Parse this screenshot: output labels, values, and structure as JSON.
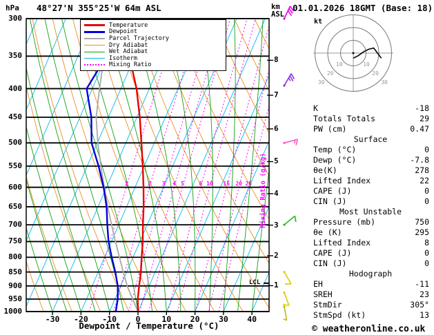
{
  "header": {
    "hpa": "hPa",
    "title": "48°27'N 355°25'W 64m ASL",
    "km": "km",
    "asl": "ASL",
    "datetime": "01.01.2026 18GMT (Base: 18)"
  },
  "axes": {
    "x_label": "Dewpoint / Temperature (°C)",
    "mixing_ratio_label": "Mixing Ratio (g/kg)",
    "kt_label": "kt",
    "lcl_label": "LCL"
  },
  "legend": {
    "items": [
      {
        "label": "Temperature",
        "color": "#e60000",
        "dash": "solid",
        "weight": 3
      },
      {
        "label": "Dewpoint",
        "color": "#0000dd",
        "dash": "solid",
        "weight": 3
      },
      {
        "label": "Parcel Trajectory",
        "color": "#a8a8a8",
        "dash": "solid",
        "weight": 2
      },
      {
        "label": "Dry Adiabat",
        "color": "#e89020",
        "dash": "solid",
        "weight": 1
      },
      {
        "label": "Wet Adiabat",
        "color": "#0fa00f",
        "dash": "solid",
        "weight": 1
      },
      {
        "label": "Isotherm",
        "color": "#00b8f0",
        "dash": "solid",
        "weight": 1
      },
      {
        "label": "Mixing Ratio",
        "color": "#ff00ff",
        "dash": "dotted",
        "weight": 2
      }
    ]
  },
  "indices": {
    "top": [
      [
        "K",
        "-18"
      ],
      [
        "Totals Totals",
        "29"
      ],
      [
        "PW (cm)",
        "0.47"
      ]
    ],
    "sections": [
      {
        "header": "Surface",
        "rows": [
          [
            "Temp (°C)",
            "0"
          ],
          [
            "Dewp (°C)",
            "-7.8"
          ],
          [
            "θe(K)",
            "278"
          ],
          [
            "Lifted Index",
            "22"
          ],
          [
            "CAPE (J)",
            "0"
          ],
          [
            "CIN (J)",
            "0"
          ]
        ]
      },
      {
        "header": "Most Unstable",
        "rows": [
          [
            "Pressure (mb)",
            "750"
          ],
          [
            "θe (K)",
            "295"
          ],
          [
            "Lifted Index",
            "8"
          ],
          [
            "CAPE (J)",
            "0"
          ],
          [
            "CIN (J)",
            "0"
          ]
        ]
      },
      {
        "header": "Hodograph",
        "rows": [
          [
            "EH",
            "-11"
          ],
          [
            "SREH",
            "23"
          ],
          [
            "StmDir",
            "305°"
          ],
          [
            "StmSpd (kt)",
            "13"
          ]
        ]
      }
    ]
  },
  "footer": {
    "copyright": "© weatheronline.co.uk"
  },
  "chart_data": {
    "type": "line",
    "variant": "skew-t-log-p",
    "title": "48°27'N 355°25'W 64m ASL",
    "datetime": "01.01.2026 18GMT (Base: 18)",
    "x_axis": {
      "label": "Dewpoint / Temperature (°C)",
      "unit": "°C",
      "ticks_c": [
        -30,
        -20,
        -10,
        0,
        10,
        20,
        30,
        40
      ],
      "range_c": [
        -39,
        46
      ]
    },
    "y_axis": {
      "unit": "hPa",
      "scale": "log",
      "levels_hpa": [
        300,
        350,
        400,
        450,
        500,
        550,
        600,
        650,
        700,
        750,
        800,
        850,
        900,
        950,
        1000
      ]
    },
    "altitude_axis": {
      "unit": "km ASL",
      "marks": [
        {
          "km": 8,
          "hpa": 356
        },
        {
          "km": 7,
          "hpa": 411
        },
        {
          "km": 6,
          "hpa": 472
        },
        {
          "km": 5,
          "hpa": 540
        },
        {
          "km": 4,
          "hpa": 616
        },
        {
          "km": 3,
          "hpa": 701
        },
        {
          "km": 2,
          "hpa": 795
        },
        {
          "km": 1,
          "hpa": 899
        }
      ]
    },
    "lcl_hpa": 890,
    "series": [
      {
        "name": "Temperature",
        "color": "#e60000",
        "width": 2.4,
        "pressure_hpa": [
          1000,
          950,
          900,
          850,
          800,
          750,
          700,
          650,
          600,
          550,
          500,
          450,
          400,
          350,
          300
        ],
        "values_c": [
          0,
          -2,
          -3.5,
          -5,
          -7,
          -9,
          -11.5,
          -14,
          -17,
          -20.5,
          -24.5,
          -29,
          -34.5,
          -42,
          -50
        ]
      },
      {
        "name": "Dewpoint",
        "color": "#0000dd",
        "width": 2.4,
        "pressure_hpa": [
          1000,
          950,
          900,
          850,
          800,
          750,
          700,
          650,
          600,
          550,
          500,
          450,
          400,
          350,
          300
        ],
        "values_c": [
          -7.8,
          -9,
          -11,
          -14,
          -17.5,
          -21,
          -24,
          -27,
          -31,
          -36,
          -42,
          -46,
          -52,
          -50,
          -57
        ]
      },
      {
        "name": "Parcel Trajectory",
        "color": "#a8a8a8",
        "width": 1.8,
        "pressure_hpa": [
          1000,
          950,
          900,
          850,
          800,
          750,
          700,
          650,
          600,
          550,
          500,
          450,
          400,
          350,
          300
        ],
        "values_c": [
          0,
          -3.8,
          -7.7,
          -11.2,
          -14.8,
          -18.6,
          -22.5,
          -26.6,
          -30.8,
          -35.2,
          -39.8,
          -44.3,
          -47.5,
          -50.8,
          -54
        ]
      }
    ],
    "background_lines": {
      "isotherms": {
        "color": "#00b8f0",
        "from_c": -120,
        "to_c": 40,
        "step_c": 10
      },
      "dry_adiabats": {
        "color": "#e89020",
        "theta_k_from": 230,
        "theta_k_to": 390,
        "step_k": 10
      },
      "wet_adiabats": {
        "color": "#0fa00f",
        "start_c_from": -30,
        "start_c_to": 40,
        "step_c": 5
      },
      "mixing_ratio": {
        "color": "#ff00ff",
        "values_gkg": [
          1,
          2,
          3,
          4,
          5,
          8,
          10,
          15,
          20,
          25
        ],
        "labels_at_hpa": 600
      }
    },
    "wind_barbs": {
      "unit": "kt",
      "levels": [
        {
          "hpa": 300,
          "speed_kt": 30,
          "dir_deg": 25,
          "color": "#e800e8"
        },
        {
          "hpa": 395,
          "speed_kt": 25,
          "dir_deg": 30,
          "color": "#8833dd"
        },
        {
          "hpa": 500,
          "speed_kt": 15,
          "dir_deg": 75,
          "color": "#ff55bb"
        },
        {
          "hpa": 700,
          "speed_kt": 10,
          "dir_deg": 50,
          "color": "#22bb22"
        },
        {
          "hpa": 850,
          "speed_kt": 10,
          "dir_deg": 150,
          "color": "#ddcc00"
        },
        {
          "hpa": 925,
          "speed_kt": 10,
          "dir_deg": 160,
          "color": "#ddcc00"
        },
        {
          "hpa": 980,
          "speed_kt": 5,
          "dir_deg": 170,
          "color": "#bbbb00"
        }
      ]
    },
    "hodograph": {
      "unit": "kt",
      "rings_kt": [
        10,
        20,
        30
      ],
      "trace_uv_kt": [
        [
          0,
          -4
        ],
        [
          4,
          -2
        ],
        [
          8,
          1
        ],
        [
          12,
          3
        ],
        [
          16,
          4
        ],
        [
          19,
          0
        ],
        [
          22,
          -4
        ]
      ],
      "storm_dir_deg": 305,
      "storm_speed_kt": 13
    }
  }
}
